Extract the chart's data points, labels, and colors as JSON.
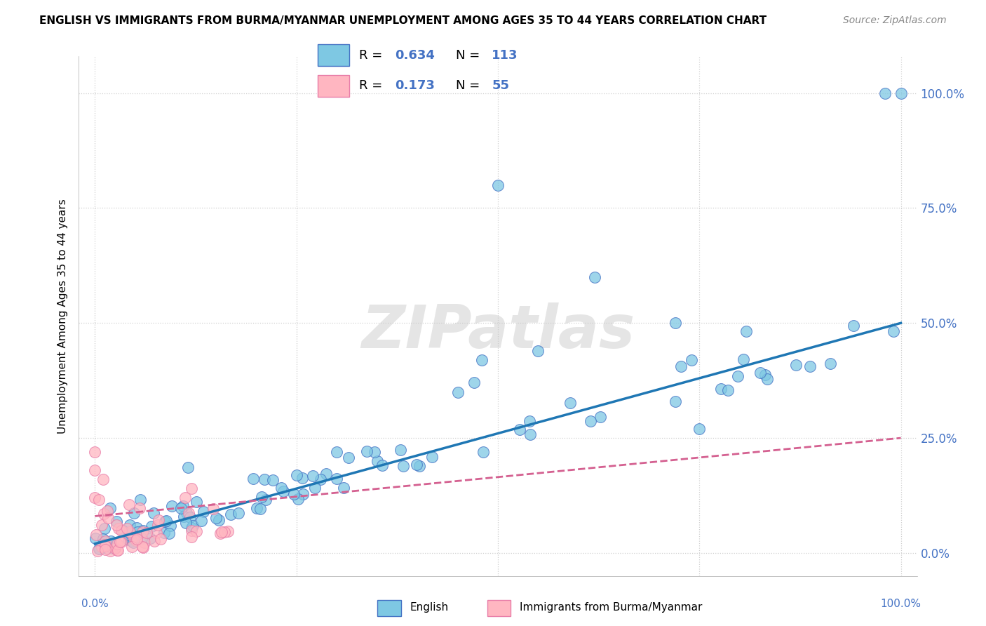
{
  "title": "ENGLISH VS IMMIGRANTS FROM BURMA/MYANMAR UNEMPLOYMENT AMONG AGES 35 TO 44 YEARS CORRELATION CHART",
  "source": "Source: ZipAtlas.com",
  "ylabel": "Unemployment Among Ages 35 to 44 years",
  "ytick_values": [
    0,
    25,
    50,
    75,
    100
  ],
  "legend_english_R": "0.634",
  "legend_english_N": "113",
  "legend_immigrant_R": "0.173",
  "legend_immigrant_N": "55",
  "english_face_color": "#7ec8e3",
  "english_edge_color": "#4472c4",
  "immigrant_face_color": "#ffb6c1",
  "immigrant_edge_color": "#e87da8",
  "english_line_color": "#1f77b4",
  "immigrant_line_color": "#d46090",
  "background_color": "#ffffff",
  "watermark": "ZIPatlas",
  "right_label_color": "#4472c4",
  "grid_color": "#d0d0d0",
  "title_color": "#000000",
  "source_color": "#888888"
}
